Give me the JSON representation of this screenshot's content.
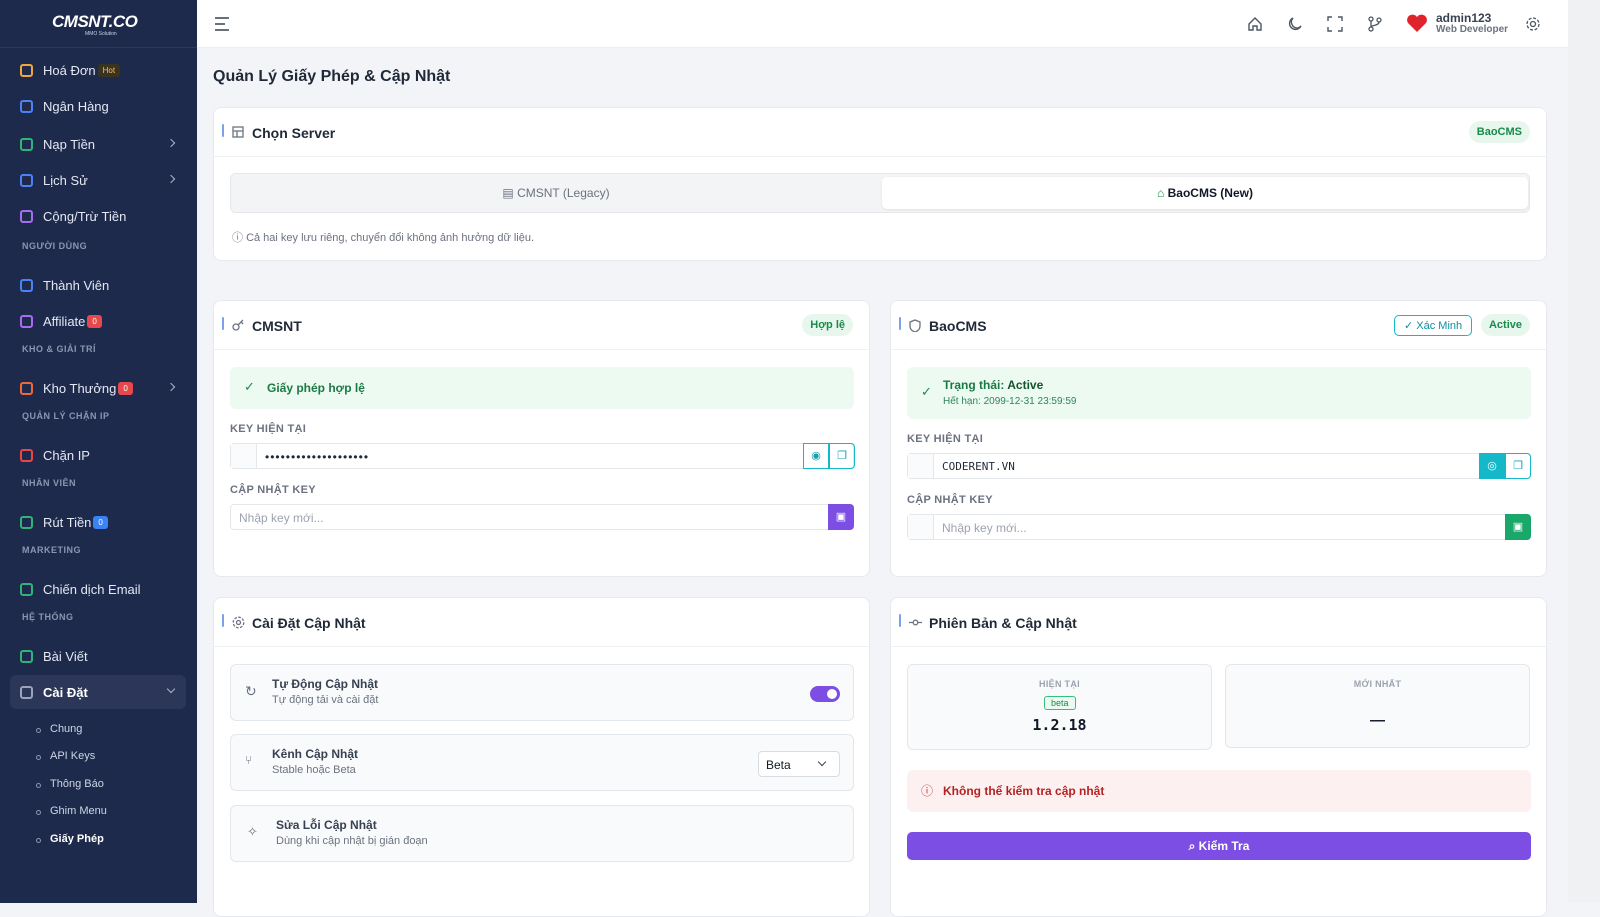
{
  "sidebar": {
    "logo": "CMSNT.CO",
    "logo_tagline": "MMO Solution",
    "items": [
      {
        "label": "Hoá Đơn",
        "badge": "Hot",
        "badge_color": "#3a3320"
      },
      {
        "label": "Ngân Hàng"
      },
      {
        "label": "Nạp Tiền",
        "has_children": true
      },
      {
        "label": "Lịch Sử",
        "has_children": true
      },
      {
        "label": "Cộng/Trừ Tiền"
      },
      {
        "section": "NGƯỜI DÙNG"
      },
      {
        "label": "Thành Viên"
      },
      {
        "label": "Affiliate",
        "badge": "0",
        "badge_color": "#e5484d"
      },
      {
        "section": "KHO & GIẢI TRÍ"
      },
      {
        "label": "Kho Thưởng",
        "badge": "0",
        "badge_color": "#e5484d",
        "has_children": true
      },
      {
        "section": "QUẢN LÝ CHẶN IP"
      },
      {
        "label": "Chặn IP"
      },
      {
        "section": "NHÂN VIÊN"
      },
      {
        "label": "Rút Tiền",
        "badge": "0",
        "badge_color": "#3b82f6"
      },
      {
        "section": "MARKETING"
      },
      {
        "label": "Chiến dịch Email"
      },
      {
        "section": "HỆ THỐNG"
      },
      {
        "label": "Bài Viết"
      },
      {
        "label": "Cài Đặt",
        "has_children": true,
        "open": true
      }
    ],
    "submenu": [
      "Chung",
      "API Keys",
      "Thông Báo",
      "Ghim Menu",
      "Giấy Phép"
    ]
  },
  "topbar": {
    "user": "admin123",
    "role": "Web Developer"
  },
  "page_title": "Quản Lý Giấy Phép & Cập Nhật",
  "server_card": {
    "title": "Chọn Server",
    "badge": "BaoCMS",
    "options": [
      "CMSNT (Legacy)",
      "BaoCMS (New)"
    ],
    "note": "Cả hai key lưu riêng, chuyển đổi không ảnh hưởng dữ liệu."
  },
  "cmsnt_card": {
    "title": "CMSNT",
    "badge": "Hợp lệ",
    "status": "Giấy phép hợp lệ",
    "key_label": "KEY HIỆN TẠI",
    "key_value": "••••••••••••••••••••",
    "update_label": "CẬP NHẬT KEY",
    "placeholder": "Nhập key mới..."
  },
  "baocms_card": {
    "title": "BaoCMS",
    "verify_button": "Xác Minh",
    "badge": "Active",
    "status_prefix": "Trạng thái:",
    "status_value": "Active",
    "expiry": "Hết hạn: 2099-12-31 23:59:59",
    "key_label": "KEY HIỆN TẠI",
    "key_value": "CODERENT.VN",
    "update_label": "CẬP NHẬT KEY",
    "placeholder": "Nhập key mới..."
  },
  "update_settings": {
    "title": "Cài Đặt Cập Nhật",
    "rows": [
      {
        "title": "Tự Động Cập Nhật",
        "subtitle": "Tự động tải và cài đặt"
      },
      {
        "title": "Kênh Cập Nhật",
        "subtitle": "Stable hoặc Beta",
        "select": "Beta"
      },
      {
        "title": "Sửa Lỗi Cập Nhật",
        "subtitle": "Dùng khi cập nhật bị gián đoạn"
      }
    ]
  },
  "version_card": {
    "title": "Phiên Bản & Cập Nhật",
    "current_label": "HIỆN TẠI",
    "current_channel": "beta",
    "current_version": "1.2.18",
    "latest_label": "MỚI NHẤT",
    "latest_version": "—",
    "error": "Không thể kiểm tra cập nhật",
    "check_button": "Kiểm Tra"
  }
}
